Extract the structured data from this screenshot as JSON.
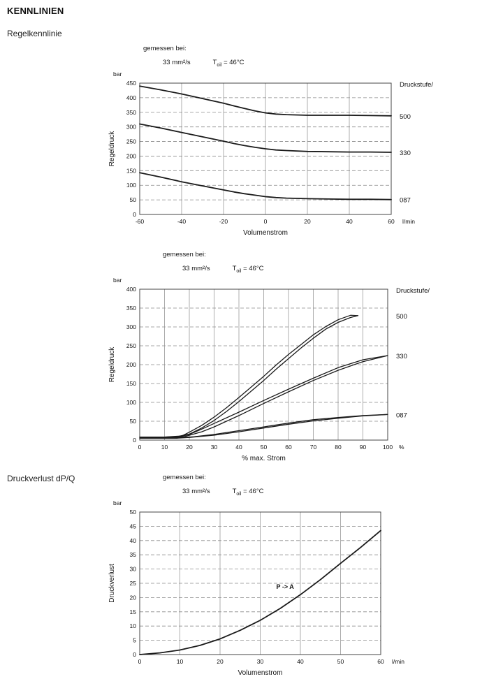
{
  "page": {
    "title": "KENNLINIEN"
  },
  "colors": {
    "text": "#111111",
    "grid": "#8a8a8a",
    "curve": "#1a1a1a",
    "background": "#ffffff"
  },
  "chart_data": [
    {
      "type": "line",
      "section_label": "Regelkennlinie",
      "measured": {
        "label": "gemessen bei:",
        "viscosity": "33 mm²/s",
        "temp_prefix": "T",
        "temp_sub": "oil",
        "temp_value": "= 46°C"
      },
      "unit_y": "bar",
      "unit_x": "l/min",
      "xlabel": "Volumenstrom",
      "ylabel": "Regeldruck",
      "right_header": "Druckstufe/",
      "xlim": [
        -60,
        60
      ],
      "ylim": [
        0,
        450
      ],
      "xticks": [
        -60,
        -40,
        -20,
        0,
        20,
        40,
        60
      ],
      "yticks": [
        0,
        50,
        100,
        150,
        200,
        250,
        300,
        350,
        400,
        450
      ],
      "grid": true,
      "legend_position": "right",
      "series": [
        {
          "name": "500",
          "points": [
            [
              -60,
              440
            ],
            [
              -50,
              427
            ],
            [
              -40,
              413
            ],
            [
              -30,
              397
            ],
            [
              -20,
              381
            ],
            [
              -15,
              372
            ],
            [
              -10,
              363
            ],
            [
              -5,
              355
            ],
            [
              0,
              348
            ],
            [
              5,
              344
            ],
            [
              10,
              342
            ],
            [
              20,
              340
            ],
            [
              30,
              340
            ],
            [
              40,
              340
            ],
            [
              50,
              339
            ],
            [
              60,
              338
            ]
          ]
        },
        {
          "name": "330",
          "points": [
            [
              -60,
              310
            ],
            [
              -50,
              296
            ],
            [
              -40,
              281
            ],
            [
              -30,
              266
            ],
            [
              -20,
              251
            ],
            [
              -15,
              243
            ],
            [
              -10,
              236
            ],
            [
              -5,
              230
            ],
            [
              0,
              225
            ],
            [
              5,
              221
            ],
            [
              10,
              219
            ],
            [
              20,
              216
            ],
            [
              30,
              215
            ],
            [
              40,
              214
            ],
            [
              50,
              214
            ],
            [
              60,
              213
            ]
          ]
        },
        {
          "name": "087",
          "points": [
            [
              -60,
              143
            ],
            [
              -50,
              128
            ],
            [
              -40,
              112
            ],
            [
              -30,
              98
            ],
            [
              -20,
              84
            ],
            [
              -15,
              77
            ],
            [
              -10,
              71
            ],
            [
              -5,
              66
            ],
            [
              0,
              61
            ],
            [
              5,
              58
            ],
            [
              10,
              56
            ],
            [
              20,
              54
            ],
            [
              30,
              53
            ],
            [
              40,
              52
            ],
            [
              50,
              52
            ],
            [
              60,
              51
            ]
          ]
        }
      ]
    },
    {
      "type": "line",
      "section_label": "",
      "measured": {
        "label": "gemessen bei:",
        "viscosity": "33 mm²/s",
        "temp_prefix": "T",
        "temp_sub": "oil",
        "temp_value": "= 46°C"
      },
      "unit_y": "bar",
      "unit_x": "%",
      "xlabel": "% max. Strom",
      "ylabel": "Regeldruck",
      "right_header": "Druckstufe/",
      "xlim": [
        0,
        100
      ],
      "ylim": [
        0,
        400
      ],
      "xticks": [
        0,
        10,
        20,
        30,
        40,
        50,
        60,
        70,
        80,
        90,
        100
      ],
      "yticks": [
        0,
        50,
        100,
        150,
        200,
        250,
        300,
        350,
        400
      ],
      "grid": true,
      "legend_position": "right",
      "series": [
        {
          "name": "",
          "points": [
            [
              88,
              330
            ],
            [
              85,
              331
            ],
            [
              80,
              319
            ],
            [
              75,
              301
            ],
            [
              70,
              279
            ],
            [
              65,
              253
            ],
            [
              60,
              227
            ],
            [
              55,
              199
            ],
            [
              50,
              169
            ],
            [
              45,
              141
            ],
            [
              40,
              113
            ],
            [
              35,
              86
            ],
            [
              30,
              61
            ],
            [
              25,
              39
            ],
            [
              20,
              21
            ],
            [
              17,
              11
            ],
            [
              10,
              8
            ],
            [
              0,
              8
            ]
          ]
        },
        {
          "name": "500",
          "points": [
            [
              0,
              8
            ],
            [
              10,
              8
            ],
            [
              15,
              9
            ],
            [
              20,
              16
            ],
            [
              25,
              32
            ],
            [
              30,
              52
            ],
            [
              35,
              76
            ],
            [
              40,
              102
            ],
            [
              45,
              130
            ],
            [
              50,
              158
            ],
            [
              55,
              188
            ],
            [
              60,
              216
            ],
            [
              65,
              244
            ],
            [
              70,
              270
            ],
            [
              75,
              294
            ],
            [
              80,
              312
            ],
            [
              85,
              325
            ],
            [
              88,
              330
            ]
          ]
        },
        {
          "name": "",
          "points": [
            [
              100,
              224
            ],
            [
              90,
              213
            ],
            [
              80,
              192
            ],
            [
              70,
              164
            ],
            [
              60,
              135
            ],
            [
              50,
              105
            ],
            [
              40,
              74
            ],
            [
              30,
              44
            ],
            [
              25,
              29
            ],
            [
              20,
              15
            ],
            [
              15,
              7
            ],
            [
              0,
              6
            ]
          ]
        },
        {
          "name": "330",
          "points": [
            [
              0,
              6
            ],
            [
              12,
              6
            ],
            [
              18,
              9
            ],
            [
              25,
              22
            ],
            [
              30,
              35
            ],
            [
              40,
              65
            ],
            [
              50,
              97
            ],
            [
              60,
              128
            ],
            [
              70,
              158
            ],
            [
              80,
              185
            ],
            [
              90,
              208
            ],
            [
              100,
              224
            ]
          ]
        },
        {
          "name": "",
          "points": [
            [
              100,
              68
            ],
            [
              90,
              65
            ],
            [
              80,
              60
            ],
            [
              70,
              54
            ],
            [
              60,
              45
            ],
            [
              50,
              35
            ],
            [
              40,
              25
            ],
            [
              30,
              15
            ],
            [
              22,
              9
            ],
            [
              15,
              6
            ],
            [
              0,
              5
            ]
          ]
        },
        {
          "name": "087",
          "points": [
            [
              0,
              5
            ],
            [
              15,
              5
            ],
            [
              20,
              7
            ],
            [
              30,
              13
            ],
            [
              40,
              22
            ],
            [
              50,
              32
            ],
            [
              60,
              42
            ],
            [
              70,
              51
            ],
            [
              80,
              58
            ],
            [
              90,
              64
            ],
            [
              100,
              68
            ]
          ]
        }
      ]
    },
    {
      "type": "line",
      "section_label": "Druckverlust dP/Q",
      "measured": {
        "label": "gemessen bei:",
        "viscosity": "33 mm²/s",
        "temp_prefix": "T",
        "temp_sub": "oil",
        "temp_value": "= 46°C"
      },
      "unit_y": "bar",
      "unit_x": "l/min",
      "xlabel": "Volumenstrom",
      "ylabel": "Druckverlust",
      "right_header": "",
      "xlim": [
        0,
        60
      ],
      "ylim": [
        0,
        50
      ],
      "xticks": [
        0,
        10,
        20,
        30,
        40,
        50,
        60
      ],
      "yticks": [
        0,
        5,
        10,
        15,
        20,
        25,
        30,
        35,
        40,
        45,
        50
      ],
      "grid": true,
      "annotations": [
        {
          "x": 34,
          "y": 23,
          "text": "P -> A"
        }
      ],
      "series": [
        {
          "name": "",
          "points": [
            [
              0,
              0
            ],
            [
              5,
              0.6
            ],
            [
              10,
              1.6
            ],
            [
              15,
              3.2
            ],
            [
              20,
              5.5
            ],
            [
              25,
              8.5
            ],
            [
              30,
              12
            ],
            [
              35,
              16.2
            ],
            [
              40,
              21
            ],
            [
              45,
              26.3
            ],
            [
              50,
              32
            ],
            [
              55,
              37.6
            ],
            [
              60,
              43.5
            ]
          ]
        }
      ]
    }
  ]
}
